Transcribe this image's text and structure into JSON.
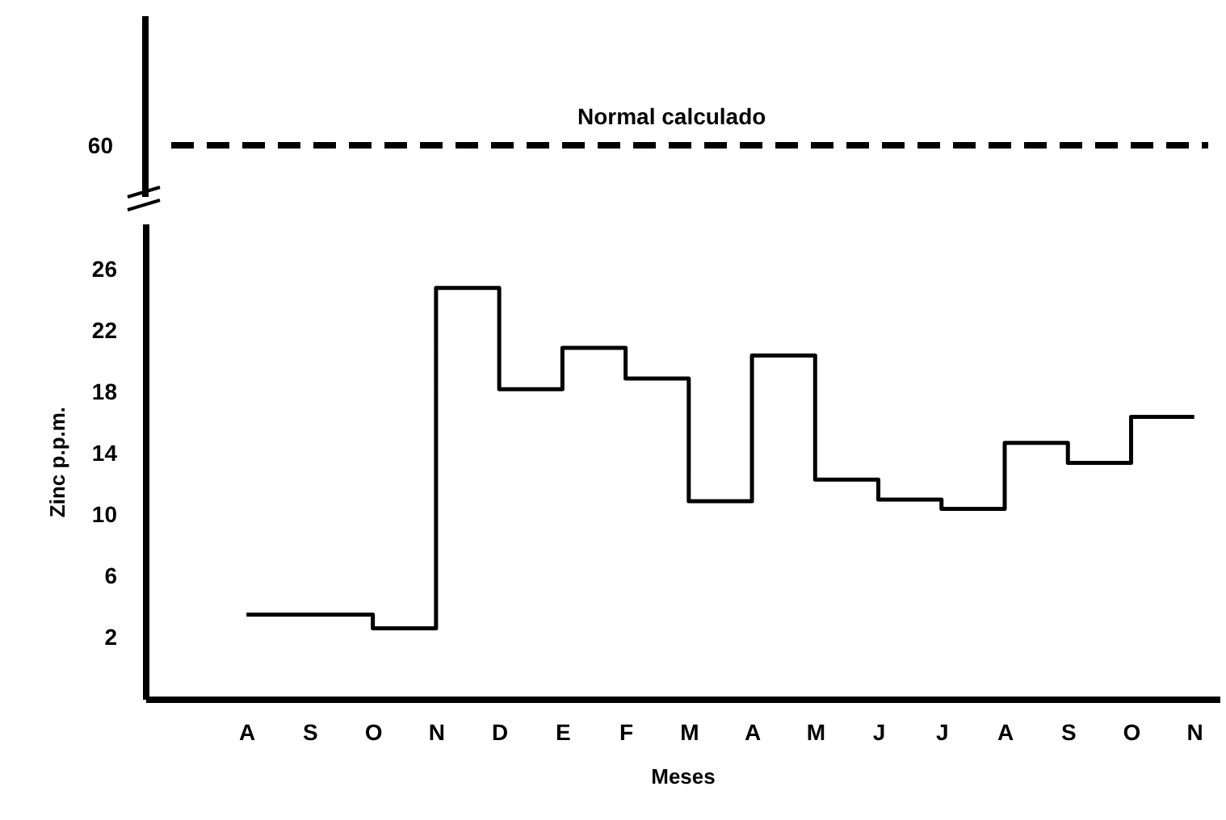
{
  "chart_data": {
    "type": "step",
    "xlabel": "Meses",
    "ylabel": "Zinc p.p.m.",
    "categories": [
      "A",
      "S",
      "O",
      "N",
      "D",
      "E",
      "F",
      "M",
      "A",
      "M",
      "J",
      "J",
      "A",
      "S",
      "O",
      "N"
    ],
    "values": [
      3.5,
      3.5,
      2.6,
      24.8,
      18.2,
      20.9,
      18.9,
      10.9,
      20.4,
      12.3,
      11.0,
      10.4,
      14.7,
      13.4,
      16.4,
      16.4
    ],
    "color": "#000000",
    "ylim": [
      -2,
      29
    ],
    "yticks": [
      2,
      6,
      10,
      14,
      18,
      22,
      26
    ],
    "annotations": [
      "Normal calculado",
      "60"
    ]
  }
}
